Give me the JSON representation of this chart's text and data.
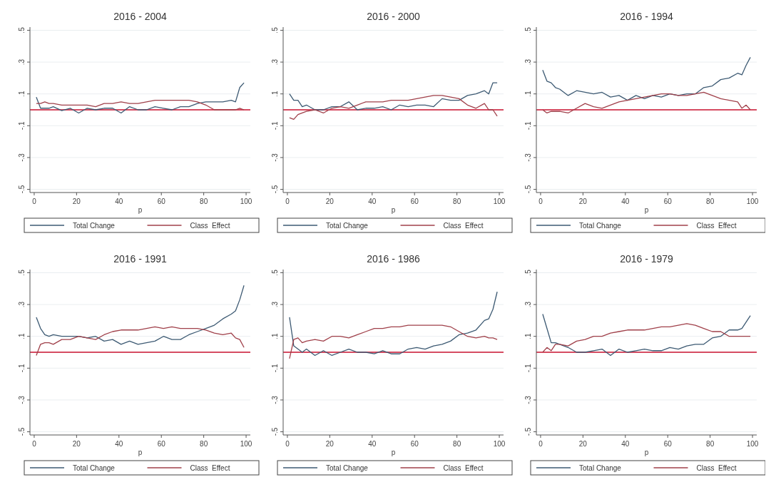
{
  "chart_data": [
    {
      "type": "line",
      "title": "2016 - 2004",
      "xlabel": "p",
      "x": [
        1,
        3,
        5,
        7,
        9,
        13,
        17,
        21,
        25,
        29,
        33,
        37,
        41,
        45,
        49,
        53,
        57,
        61,
        65,
        69,
        73,
        77,
        81,
        85,
        89,
        93,
        95,
        97,
        99
      ],
      "xlim": [
        -2,
        102
      ],
      "xticks": [
        0,
        20,
        40,
        60,
        80,
        100
      ],
      "ylim": [
        -0.52,
        0.52
      ],
      "yticks": [
        {
          "value": -0.5,
          "label": "-.5"
        },
        {
          "value": -0.3,
          "label": "-.3"
        },
        {
          "value": -0.1,
          "label": "-.1"
        },
        {
          "value": 0.1,
          "label": ".1"
        },
        {
          "value": 0.3,
          "label": ".3"
        },
        {
          "value": 0.5,
          "label": ".5"
        }
      ],
      "grid": "y",
      "legend": "bottom",
      "ref_lines": [
        {
          "axis": "y",
          "value": 0,
          "color": "#c8102e"
        }
      ],
      "series": [
        {
          "name": "Total Change",
          "color": "#3d5a73",
          "values": [
            0.08,
            0.01,
            0.01,
            0.01,
            0.02,
            -0.005,
            0.01,
            -0.02,
            0.01,
            0.0,
            0.01,
            0.01,
            -0.02,
            0.02,
            0.0,
            0.0,
            0.02,
            0.01,
            0.0,
            0.02,
            0.02,
            0.04,
            0.05,
            0.05,
            0.05,
            0.06,
            0.05,
            0.14,
            0.17
          ]
        },
        {
          "name": "Class  Effect",
          "color": "#a0404a",
          "values": [
            0.04,
            0.04,
            0.05,
            0.04,
            0.04,
            0.03,
            0.03,
            0.03,
            0.03,
            0.02,
            0.04,
            0.04,
            0.05,
            0.04,
            0.04,
            0.05,
            0.06,
            0.06,
            0.06,
            0.06,
            0.06,
            0.05,
            0.03,
            0.0,
            0.0,
            0.0,
            0.0,
            0.01,
            0.0
          ]
        }
      ]
    },
    {
      "type": "line",
      "title": "2016 - 2000",
      "xlabel": "p",
      "x": [
        1,
        3,
        5,
        7,
        9,
        13,
        17,
        21,
        25,
        29,
        33,
        37,
        41,
        45,
        49,
        53,
        57,
        61,
        65,
        69,
        73,
        77,
        81,
        85,
        89,
        93,
        95,
        97,
        99
      ],
      "xlim": [
        -2,
        102
      ],
      "xticks": [
        0,
        20,
        40,
        60,
        80,
        100
      ],
      "ylim": [
        -0.52,
        0.52
      ],
      "yticks": [
        {
          "value": -0.5,
          "label": "-.5"
        },
        {
          "value": -0.3,
          "label": "-.3"
        },
        {
          "value": -0.1,
          "label": "-.1"
        },
        {
          "value": 0.1,
          "label": ".1"
        },
        {
          "value": 0.3,
          "label": ".3"
        },
        {
          "value": 0.5,
          "label": ".5"
        }
      ],
      "grid": "y",
      "legend": "bottom",
      "ref_lines": [
        {
          "axis": "y",
          "value": 0,
          "color": "#c8102e"
        }
      ],
      "series": [
        {
          "name": "Total Change",
          "color": "#3d5a73",
          "values": [
            0.1,
            0.06,
            0.06,
            0.02,
            0.03,
            0.0,
            0.0,
            0.02,
            0.02,
            0.05,
            0.0,
            0.01,
            0.01,
            0.02,
            0.0,
            0.03,
            0.02,
            0.03,
            0.03,
            0.02,
            0.07,
            0.06,
            0.06,
            0.09,
            0.1,
            0.12,
            0.1,
            0.17,
            0.17
          ]
        },
        {
          "name": "Class  Effect",
          "color": "#a0404a",
          "values": [
            -0.05,
            -0.06,
            -0.03,
            -0.02,
            -0.01,
            0.0,
            -0.02,
            0.01,
            0.02,
            0.01,
            0.03,
            0.05,
            0.05,
            0.05,
            0.06,
            0.06,
            0.06,
            0.07,
            0.08,
            0.09,
            0.09,
            0.08,
            0.07,
            0.03,
            0.01,
            0.04,
            0.0,
            0.0,
            -0.04
          ]
        }
      ]
    },
    {
      "type": "line",
      "title": "2016 - 1994",
      "xlabel": "p",
      "x": [
        1,
        3,
        5,
        7,
        9,
        13,
        17,
        21,
        25,
        29,
        33,
        37,
        41,
        45,
        49,
        53,
        57,
        61,
        65,
        69,
        73,
        77,
        81,
        85,
        89,
        93,
        95,
        97,
        99
      ],
      "xlim": [
        -2,
        102
      ],
      "xticks": [
        0,
        20,
        40,
        60,
        80,
        100
      ],
      "ylim": [
        -0.52,
        0.52
      ],
      "yticks": [
        {
          "value": -0.5,
          "label": "-.5"
        },
        {
          "value": -0.3,
          "label": "-.3"
        },
        {
          "value": -0.1,
          "label": "-.1"
        },
        {
          "value": 0.1,
          "label": ".1"
        },
        {
          "value": 0.3,
          "label": ".3"
        },
        {
          "value": 0.5,
          "label": ".5"
        }
      ],
      "grid": "y",
      "legend": "bottom",
      "ref_lines": [
        {
          "axis": "y",
          "value": 0,
          "color": "#c8102e"
        }
      ],
      "series": [
        {
          "name": "Total Change",
          "color": "#3d5a73",
          "values": [
            0.25,
            0.18,
            0.17,
            0.14,
            0.13,
            0.09,
            0.12,
            0.11,
            0.1,
            0.11,
            0.08,
            0.09,
            0.06,
            0.09,
            0.07,
            0.09,
            0.08,
            0.1,
            0.09,
            0.1,
            0.1,
            0.14,
            0.15,
            0.19,
            0.2,
            0.23,
            0.22,
            0.28,
            0.33
          ]
        },
        {
          "name": "Class  Effect",
          "color": "#a0404a",
          "values": [
            0.0,
            -0.02,
            -0.01,
            -0.01,
            -0.01,
            -0.02,
            0.01,
            0.04,
            0.02,
            0.01,
            0.03,
            0.05,
            0.06,
            0.07,
            0.08,
            0.09,
            0.1,
            0.1,
            0.09,
            0.09,
            0.1,
            0.11,
            0.09,
            0.07,
            0.06,
            0.05,
            0.01,
            0.03,
            0.0
          ]
        }
      ]
    },
    {
      "type": "line",
      "title": "2016 - 1991",
      "xlabel": "p",
      "x": [
        1,
        3,
        5,
        7,
        9,
        13,
        17,
        21,
        25,
        29,
        33,
        37,
        41,
        45,
        49,
        53,
        57,
        61,
        65,
        69,
        73,
        77,
        81,
        85,
        89,
        93,
        95,
        97,
        99
      ],
      "xlim": [
        -2,
        102
      ],
      "xticks": [
        0,
        20,
        40,
        60,
        80,
        100
      ],
      "ylim": [
        -0.52,
        0.52
      ],
      "yticks": [
        {
          "value": -0.5,
          "label": "-.5"
        },
        {
          "value": -0.3,
          "label": "-.3"
        },
        {
          "value": -0.1,
          "label": "-.1"
        },
        {
          "value": 0.1,
          "label": ".1"
        },
        {
          "value": 0.3,
          "label": ".3"
        },
        {
          "value": 0.5,
          "label": ".5"
        }
      ],
      "grid": "y",
      "legend": "bottom",
      "ref_lines": [
        {
          "axis": "y",
          "value": 0,
          "color": "#c8102e"
        }
      ],
      "series": [
        {
          "name": "Total Change",
          "color": "#3d5a73",
          "values": [
            0.22,
            0.15,
            0.11,
            0.1,
            0.11,
            0.1,
            0.1,
            0.1,
            0.09,
            0.1,
            0.07,
            0.08,
            0.05,
            0.07,
            0.05,
            0.06,
            0.07,
            0.1,
            0.08,
            0.08,
            0.11,
            0.13,
            0.15,
            0.17,
            0.21,
            0.24,
            0.26,
            0.33,
            0.42
          ]
        },
        {
          "name": "Class  Effect",
          "color": "#a0404a",
          "values": [
            -0.02,
            0.05,
            0.06,
            0.06,
            0.05,
            0.08,
            0.08,
            0.1,
            0.09,
            0.08,
            0.11,
            0.13,
            0.14,
            0.14,
            0.14,
            0.15,
            0.16,
            0.15,
            0.16,
            0.15,
            0.15,
            0.15,
            0.14,
            0.12,
            0.11,
            0.12,
            0.09,
            0.08,
            0.03
          ]
        }
      ]
    },
    {
      "type": "line",
      "title": "2016 - 1986",
      "xlabel": "p",
      "x": [
        1,
        3,
        5,
        7,
        9,
        13,
        17,
        21,
        25,
        29,
        33,
        37,
        41,
        45,
        49,
        53,
        57,
        61,
        65,
        69,
        73,
        77,
        81,
        85,
        89,
        93,
        95,
        97,
        99
      ],
      "xlim": [
        -2,
        102
      ],
      "xticks": [
        0,
        20,
        40,
        60,
        80,
        100
      ],
      "ylim": [
        -0.52,
        0.52
      ],
      "yticks": [
        {
          "value": -0.5,
          "label": "-.5"
        },
        {
          "value": -0.3,
          "label": "-.3"
        },
        {
          "value": -0.1,
          "label": "-.1"
        },
        {
          "value": 0.1,
          "label": ".1"
        },
        {
          "value": 0.3,
          "label": ".3"
        },
        {
          "value": 0.5,
          "label": ".5"
        }
      ],
      "grid": "y",
      "legend": "bottom",
      "ref_lines": [
        {
          "axis": "y",
          "value": 0,
          "color": "#c8102e"
        }
      ],
      "series": [
        {
          "name": "Total Change",
          "color": "#3d5a73",
          "values": [
            0.22,
            0.04,
            0.02,
            0.0,
            0.02,
            -0.02,
            0.01,
            -0.02,
            0.0,
            0.02,
            0.0,
            0.0,
            -0.01,
            0.01,
            -0.01,
            -0.01,
            0.02,
            0.03,
            0.02,
            0.04,
            0.05,
            0.07,
            0.11,
            0.12,
            0.14,
            0.2,
            0.21,
            0.27,
            0.38
          ]
        },
        {
          "name": "Class  Effect",
          "color": "#a0404a",
          "values": [
            -0.04,
            0.08,
            0.09,
            0.06,
            0.07,
            0.08,
            0.07,
            0.1,
            0.1,
            0.09,
            0.11,
            0.13,
            0.15,
            0.15,
            0.16,
            0.16,
            0.17,
            0.17,
            0.17,
            0.17,
            0.17,
            0.16,
            0.13,
            0.1,
            0.09,
            0.1,
            0.09,
            0.09,
            0.08
          ]
        }
      ]
    },
    {
      "type": "line",
      "title": "2016 - 1979",
      "xlabel": "p",
      "x": [
        1,
        3,
        5,
        7,
        9,
        13,
        17,
        21,
        25,
        29,
        33,
        37,
        41,
        45,
        49,
        53,
        57,
        61,
        65,
        69,
        73,
        77,
        81,
        85,
        89,
        93,
        95,
        97,
        99
      ],
      "xlim": [
        -2,
        102
      ],
      "xticks": [
        0,
        20,
        40,
        60,
        80,
        100
      ],
      "ylim": [
        -0.52,
        0.52
      ],
      "yticks": [
        {
          "value": -0.5,
          "label": "-.5"
        },
        {
          "value": -0.3,
          "label": "-.3"
        },
        {
          "value": -0.1,
          "label": "-.1"
        },
        {
          "value": 0.1,
          "label": ".1"
        },
        {
          "value": 0.3,
          "label": ".3"
        },
        {
          "value": 0.5,
          "label": ".5"
        }
      ],
      "grid": "y",
      "legend": "bottom",
      "ref_lines": [
        {
          "axis": "y",
          "value": 0,
          "color": "#c8102e"
        }
      ],
      "series": [
        {
          "name": "Total Change",
          "color": "#3d5a73",
          "values": [
            0.24,
            0.15,
            0.06,
            0.06,
            0.05,
            0.03,
            0.0,
            0.0,
            0.01,
            0.02,
            -0.02,
            0.02,
            0.0,
            0.01,
            0.02,
            0.01,
            0.01,
            0.03,
            0.02,
            0.04,
            0.05,
            0.05,
            0.09,
            0.1,
            0.14,
            0.14,
            0.15,
            0.19,
            0.23
          ]
        },
        {
          "name": "Class  Effect",
          "color": "#a0404a",
          "values": [
            0.0,
            0.03,
            0.01,
            0.05,
            0.05,
            0.04,
            0.07,
            0.08,
            0.1,
            0.1,
            0.12,
            0.13,
            0.14,
            0.14,
            0.14,
            0.15,
            0.16,
            0.16,
            0.17,
            0.18,
            0.17,
            0.15,
            0.13,
            0.13,
            0.1,
            0.1,
            0.1,
            0.1,
            0.1
          ]
        }
      ]
    }
  ]
}
